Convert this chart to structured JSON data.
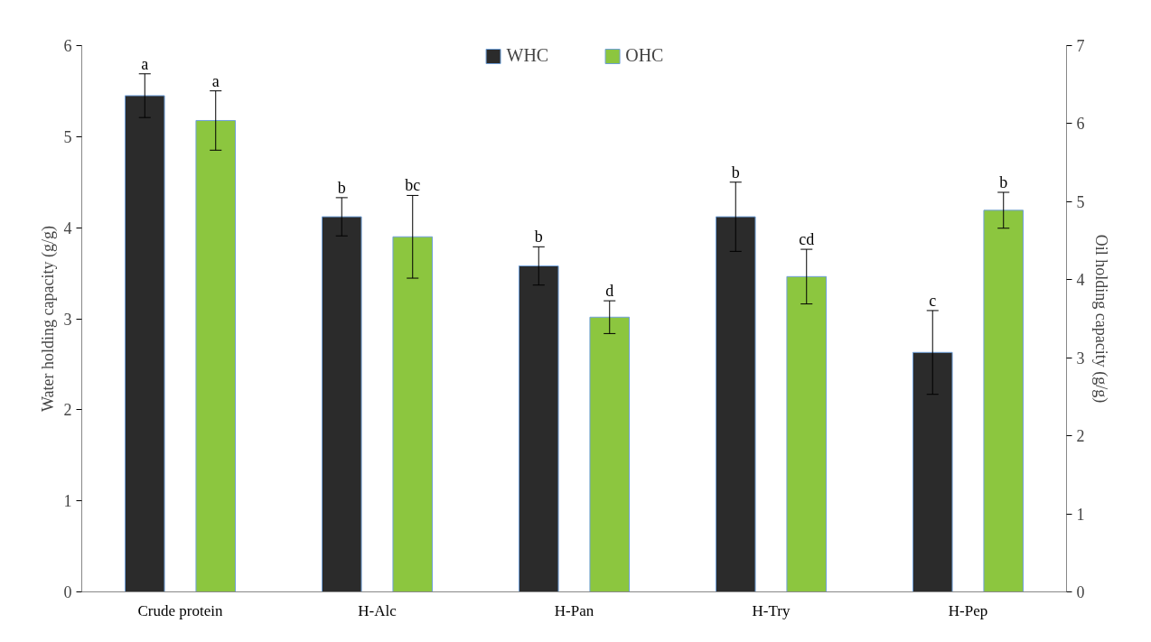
{
  "chart_data": {
    "type": "bar",
    "ylabel": "Water holding capacity (g/g)",
    "y2label": "Oil holding capacity (g/g)",
    "categories": [
      "Crude protein",
      "H-Alc",
      "H-Pan",
      "H-Try",
      "H-Pep"
    ],
    "series": [
      {
        "name": "WHC",
        "color": "#2b2b2b",
        "values": [
          5.45,
          4.12,
          3.58,
          4.12,
          2.63
        ],
        "errors": [
          0.24,
          0.21,
          0.21,
          0.38,
          0.46
        ],
        "value_labels": [
          "a",
          "b",
          "b",
          "b",
          "c"
        ]
      },
      {
        "name": "OHC",
        "color": "#8cc63f",
        "axis": "y2",
        "values": [
          6.04,
          4.55,
          3.52,
          4.04,
          4.89
        ],
        "errors": [
          0.38,
          0.53,
          0.21,
          0.35,
          0.23
        ],
        "value_labels": [
          "a",
          "bc",
          "d",
          "cd",
          "b"
        ]
      }
    ],
    "ylim": [
      0,
      6
    ],
    "yticks": [
      0,
      1,
      2,
      3,
      4,
      5,
      6
    ],
    "y2lim": [
      0,
      7
    ],
    "y2ticks": [
      0,
      1,
      2,
      3,
      4,
      5,
      6,
      7
    ],
    "grid": false,
    "legend": "top"
  }
}
